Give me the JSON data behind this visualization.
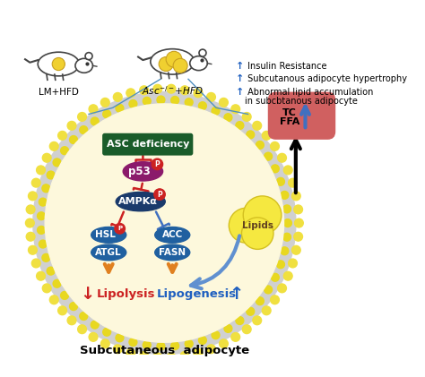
{
  "title": "Subcutaneous  adipocyte",
  "lm_label": "LM+HFD",
  "asc_label": "Asc⁻/⁻+HFD",
  "asc_box_text": "ASC deficiency",
  "p53_text": "p53",
  "ampk_text": "AMPKα",
  "hsl_text": "HSL",
  "atgl_text": "ATGL",
  "acc_text": "ACC",
  "fasn_text": "FASN",
  "p_label": "P",
  "lipids_text": "Lipids",
  "tc_text": "TC",
  "ffa_text": "FFA",
  "lipolysis_text": "Lipolysis",
  "lipogenesis_text": "Lipogenesis",
  "bullet1": " Insulin Resistance",
  "bullet2": " Subcutanous adipocyte hypertrophy",
  "bullet3": " Abnormal lipid accumulation",
  "bullet3b": "   in subcbtanous adipocyte",
  "cell_color": "#FDF8DC",
  "cell_border2_color": "#D0D0D0",
  "dot_color": "#F0E040",
  "dot_color2": "#E8D820",
  "asc_box_bg": "#1A5C2A",
  "asc_box_text_color": "white",
  "p53_color": "#8B1A6B",
  "ampk_color": "#1A3A6B",
  "hsl_color": "#2060A0",
  "atgl_color": "#2060A0",
  "acc_color": "#2060A0",
  "fasn_color": "#2060A0",
  "p_circle_color": "#CC2222",
  "inhibit_color": "#CC2222",
  "blue_arrow_color": "#4070C0",
  "blood_vessel_color": "#D06060",
  "bullet_color": "#2060C0",
  "orange_color": "#E08020",
  "lipolysis_color": "#CC2222",
  "lipogenesis_color": "#2060C0",
  "lipid_color": "#F5E840",
  "lipid_edge": "#D4C020"
}
